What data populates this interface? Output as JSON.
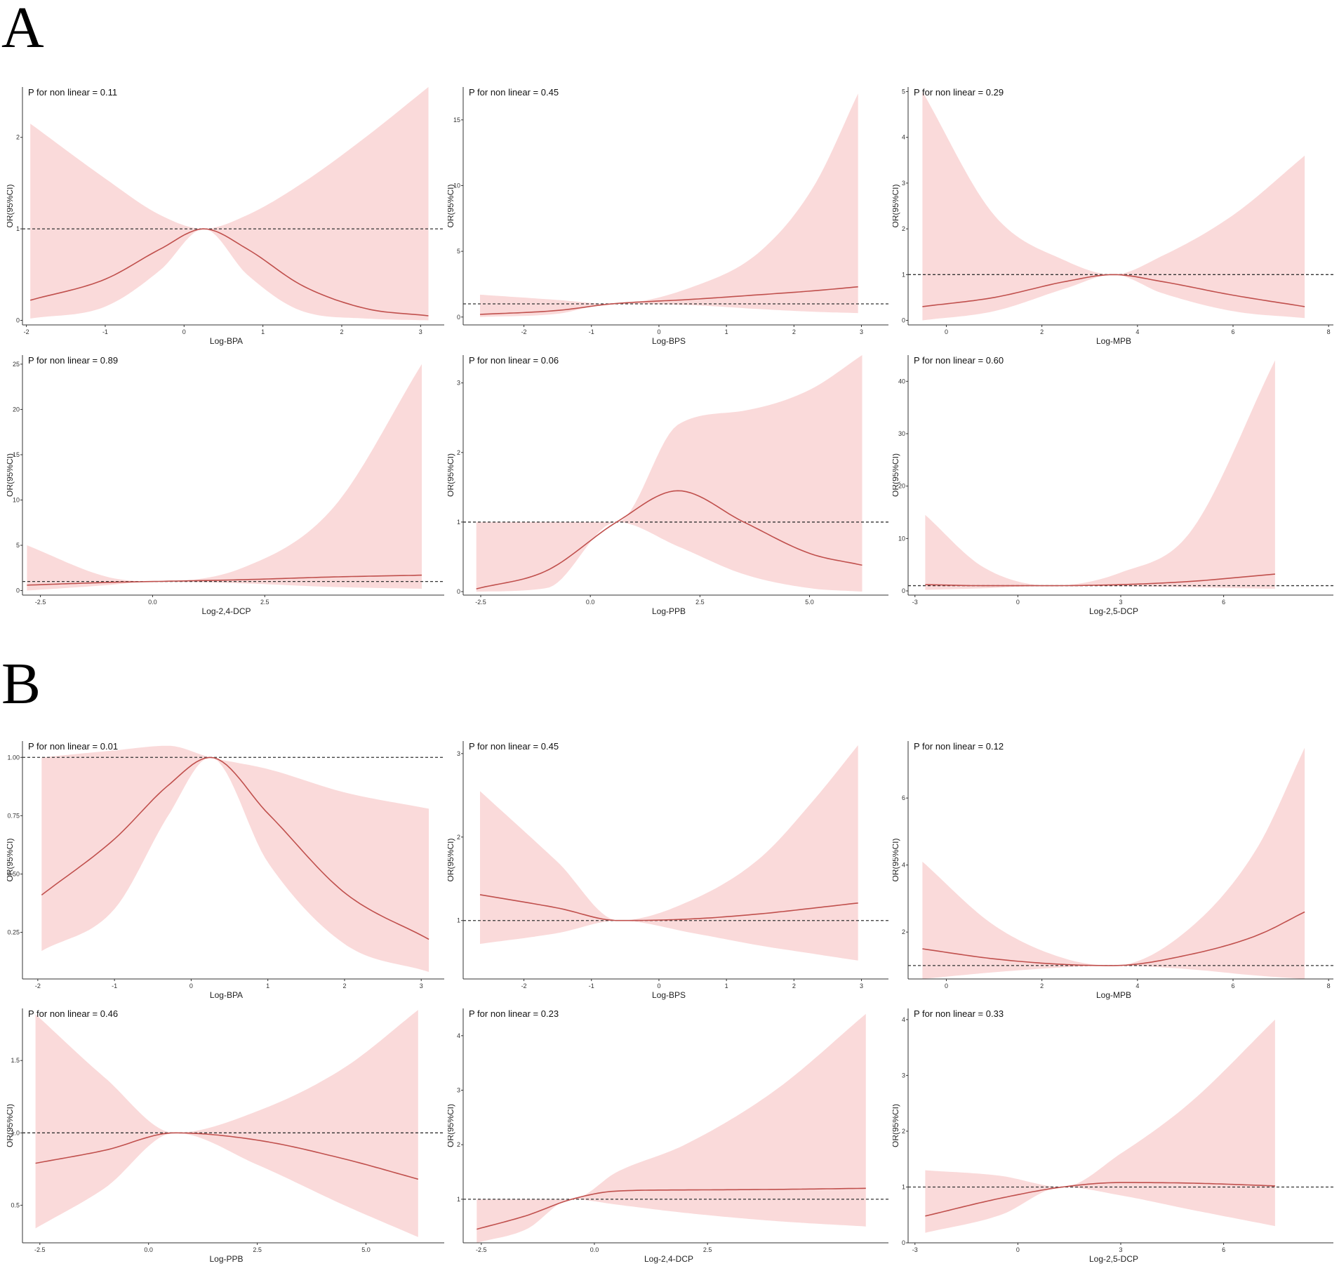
{
  "section_labels": {
    "a": "A",
    "b": "B"
  },
  "style": {
    "band_color": "#fadada",
    "curve_color": "#c0504d",
    "ref_color": "#333333",
    "axis_color": "#333333"
  },
  "chart_data": [
    {
      "id": "A1",
      "section": "A",
      "type": "line",
      "annotation": "P for non linear = 0.11",
      "xlabel": "Log-BPA",
      "ylabel": "OR(95%CI)",
      "xlim": [
        -2.05,
        3.3
      ],
      "ylim": [
        -0.05,
        2.55
      ],
      "xticks": [
        -2,
        -1,
        0,
        1,
        2,
        3
      ],
      "xtick_labels": [
        "-2",
        "-1",
        "0",
        "1",
        "2",
        "3"
      ],
      "yticks": [
        0,
        1,
        2
      ],
      "ytick_labels": [
        "0",
        "1",
        "2"
      ],
      "reference": 1,
      "x": [
        -1.95,
        -1.0,
        -0.3,
        0.25,
        0.8,
        1.5,
        2.3,
        3.1
      ],
      "y": [
        0.22,
        0.45,
        0.78,
        1.0,
        0.78,
        0.38,
        0.13,
        0.05
      ],
      "lower": [
        0.02,
        0.15,
        0.55,
        1.0,
        0.5,
        0.1,
        0.02,
        0.0
      ],
      "upper": [
        2.15,
        1.55,
        1.15,
        1.0,
        1.15,
        1.5,
        2.0,
        2.55
      ]
    },
    {
      "id": "A2",
      "section": "A",
      "type": "line",
      "annotation": "P for non linear = 0.45",
      "xlabel": "Log-BPS",
      "ylabel": "OR(95%CI)",
      "xlim": [
        -2.9,
        3.4
      ],
      "ylim": [
        -0.6,
        17.5
      ],
      "xticks": [
        -2,
        -1,
        0,
        1,
        2,
        3
      ],
      "xtick_labels": [
        "-2",
        "-1",
        "0",
        "1",
        "2",
        "3"
      ],
      "yticks": [
        0,
        5,
        10,
        15
      ],
      "ytick_labels": [
        "0",
        "5",
        "10",
        "15"
      ],
      "reference": 1,
      "x": [
        -2.65,
        -1.5,
        -0.7,
        0.5,
        1.5,
        2.3,
        2.95
      ],
      "y": [
        0.2,
        0.5,
        1.0,
        1.35,
        1.7,
        2.0,
        2.3
      ],
      "lower": [
        0.0,
        0.25,
        1.0,
        0.9,
        0.6,
        0.4,
        0.3
      ],
      "upper": [
        1.7,
        1.3,
        1.0,
        2.3,
        5.0,
        10.0,
        17.0
      ]
    },
    {
      "id": "A3",
      "section": "A",
      "type": "line",
      "annotation": "P for non linear = 0.29",
      "xlabel": "Log-MPB",
      "ylabel": "OR(95%CI)",
      "xlim": [
        -0.8,
        8.1
      ],
      "ylim": [
        -0.1,
        5.1
      ],
      "xticks": [
        0,
        2,
        4,
        6,
        8
      ],
      "xtick_labels": [
        "0",
        "2",
        "4",
        "6",
        "8"
      ],
      "yticks": [
        0,
        1,
        2,
        3,
        4,
        5
      ],
      "ytick_labels": [
        "0",
        "1",
        "2",
        "3",
        "4",
        "5"
      ],
      "reference": 1,
      "x": [
        -0.5,
        1.0,
        2.5,
        3.5,
        4.5,
        6.0,
        7.5
      ],
      "y": [
        0.3,
        0.5,
        0.85,
        1.0,
        0.85,
        0.55,
        0.3
      ],
      "lower": [
        0.0,
        0.2,
        0.7,
        1.0,
        0.6,
        0.2,
        0.05
      ],
      "upper": [
        5.0,
        2.3,
        1.3,
        1.0,
        1.4,
        2.3,
        3.6
      ]
    },
    {
      "id": "A4",
      "section": "A",
      "type": "line",
      "annotation": "P for non linear = 0.89",
      "xlabel": "Log-2,4-DCP",
      "ylabel": "OR(95%CI)",
      "xlim": [
        -2.9,
        6.5
      ],
      "ylim": [
        -0.5,
        26
      ],
      "xticks": [
        -2.5,
        0.0,
        2.5
      ],
      "xtick_labels": [
        "-2.5",
        "0.0",
        "2.5"
      ],
      "yticks": [
        0,
        5,
        10,
        15,
        20,
        25
      ],
      "ytick_labels": [
        "0",
        "5",
        "10",
        "15",
        "20",
        "25"
      ],
      "reference": 1,
      "x": [
        -2.8,
        -1.0,
        0.0,
        2.0,
        4.0,
        6.0
      ],
      "y": [
        0.6,
        0.9,
        1.0,
        1.2,
        1.5,
        1.7
      ],
      "lower": [
        0.0,
        0.6,
        1.0,
        0.8,
        0.4,
        0.2
      ],
      "upper": [
        5.0,
        1.5,
        1.0,
        2.5,
        9.0,
        25.0
      ]
    },
    {
      "id": "A5",
      "section": "A",
      "type": "line",
      "annotation": "P for non linear = 0.06",
      "xlabel": "Log-PPB",
      "ylabel": "OR(95%CI)",
      "xlim": [
        -2.9,
        6.8
      ],
      "ylim": [
        -0.05,
        3.4
      ],
      "xticks": [
        -2.5,
        0.0,
        2.5,
        5.0
      ],
      "xtick_labels": [
        "-2.5",
        "0.0",
        "2.5",
        "5.0"
      ],
      "yticks": [
        0,
        1,
        2,
        3
      ],
      "ytick_labels": [
        "0",
        "1",
        "2",
        "3"
      ],
      "reference": 1,
      "x": [
        -2.6,
        -1.0,
        0.6,
        2.0,
        3.5,
        5.0,
        6.2
      ],
      "y": [
        0.04,
        0.3,
        1.0,
        1.45,
        1.0,
        0.55,
        0.38
      ],
      "lower": [
        0.0,
        0.05,
        1.0,
        0.65,
        0.25,
        0.05,
        0.0
      ],
      "upper": [
        1.0,
        1.0,
        1.0,
        2.4,
        2.6,
        2.9,
        3.4
      ]
    },
    {
      "id": "A6",
      "section": "A",
      "type": "line",
      "annotation": "P for non linear = 0.60",
      "xlabel": "Log-2,5-DCP",
      "ylabel": "OR(95%CI)",
      "xlim": [
        -3.2,
        9.2
      ],
      "ylim": [
        -0.8,
        45
      ],
      "xticks": [
        -3,
        0,
        3,
        6
      ],
      "xtick_labels": [
        "-3",
        "0",
        "3",
        "6"
      ],
      "yticks": [
        0,
        10,
        20,
        30,
        40
      ],
      "ytick_labels": [
        "0",
        "10",
        "20",
        "30",
        "40"
      ],
      "reference": 1,
      "x": [
        -2.7,
        -1.0,
        1.0,
        3.0,
        5.0,
        7.5
      ],
      "y": [
        1.2,
        1.0,
        1.0,
        1.2,
        1.8,
        3.2
      ],
      "lower": [
        0.2,
        0.5,
        1.0,
        0.9,
        0.7,
        0.4
      ],
      "upper": [
        14.5,
        4.5,
        1.0,
        3.5,
        11.0,
        44.0
      ]
    },
    {
      "id": "B1",
      "section": "B",
      "type": "line",
      "annotation": "P for non linear = 0.01",
      "xlabel": "Log-BPA",
      "ylabel": "OR(95%CI)",
      "xlim": [
        -2.2,
        3.3
      ],
      "ylim": [
        0.05,
        1.07
      ],
      "xticks": [
        -2,
        -1,
        0,
        1,
        2,
        3
      ],
      "xtick_labels": [
        "-2",
        "-1",
        "0",
        "1",
        "2",
        "3"
      ],
      "yticks": [
        0.25,
        0.5,
        0.75,
        1.0
      ],
      "ytick_labels": [
        "0.25",
        "0.50",
        "0.75",
        "1.00"
      ],
      "reference": 1.0,
      "x": [
        -1.95,
        -1.0,
        -0.3,
        0.25,
        1.0,
        2.0,
        3.1
      ],
      "y": [
        0.41,
        0.65,
        0.88,
        1.0,
        0.76,
        0.42,
        0.22
      ],
      "lower": [
        0.17,
        0.35,
        0.75,
        1.0,
        0.55,
        0.2,
        0.08
      ],
      "upper": [
        1.0,
        1.03,
        1.05,
        1.0,
        0.95,
        0.85,
        0.78
      ]
    },
    {
      "id": "B2",
      "section": "B",
      "type": "line",
      "annotation": "P for non linear = 0.45",
      "xlabel": "Log-BPS",
      "ylabel": "OR(95%CI)",
      "xlim": [
        -2.9,
        3.4
      ],
      "ylim": [
        0.3,
        3.15
      ],
      "xticks": [
        -2,
        -1,
        0,
        1,
        2,
        3
      ],
      "xtick_labels": [
        "-2",
        "-1",
        "0",
        "1",
        "2",
        "3"
      ],
      "yticks": [
        1,
        2,
        3
      ],
      "ytick_labels": [
        "1",
        "2",
        "3"
      ],
      "reference": 1,
      "x": [
        -2.65,
        -1.5,
        -0.6,
        0.5,
        1.5,
        2.3,
        2.95
      ],
      "y": [
        1.31,
        1.15,
        1.0,
        1.02,
        1.08,
        1.15,
        1.21
      ],
      "lower": [
        0.72,
        0.85,
        1.0,
        0.85,
        0.7,
        0.6,
        0.52
      ],
      "upper": [
        2.55,
        1.7,
        1.0,
        1.25,
        1.75,
        2.45,
        3.1
      ]
    },
    {
      "id": "B3",
      "section": "B",
      "type": "line",
      "annotation": "P for non linear = 0.12",
      "xlabel": "Log-MPB",
      "ylabel": "OR(95%CI)",
      "xlim": [
        -0.8,
        8.1
      ],
      "ylim": [
        0.6,
        7.7
      ],
      "xticks": [
        0,
        2,
        4,
        6,
        8
      ],
      "xtick_labels": [
        "0",
        "2",
        "4",
        "6",
        "8"
      ],
      "yticks": [
        2,
        4,
        6
      ],
      "ytick_labels": [
        "2",
        "4",
        "6"
      ],
      "reference": 1,
      "x": [
        -0.5,
        1.0,
        2.5,
        3.5,
        5.0,
        6.5,
        7.5
      ],
      "y": [
        1.5,
        1.2,
        1.03,
        1.0,
        1.3,
        1.9,
        2.6
      ],
      "lower": [
        0.6,
        0.8,
        0.95,
        1.0,
        0.9,
        0.7,
        0.6
      ],
      "upper": [
        4.1,
        2.2,
        1.2,
        1.0,
        2.0,
        4.5,
        7.5
      ]
    },
    {
      "id": "B4",
      "section": "B",
      "type": "line",
      "annotation": "P for non linear = 0.46",
      "xlabel": "Log-PPB",
      "ylabel": "OR(95%CI)",
      "xlim": [
        -2.9,
        6.8
      ],
      "ylim": [
        0.24,
        1.86
      ],
      "xticks": [
        -2.5,
        0.0,
        2.5,
        5.0
      ],
      "xtick_labels": [
        "-2.5",
        "0.0",
        "2.5",
        "5.0"
      ],
      "yticks": [
        0.5,
        1.0,
        1.5
      ],
      "ytick_labels": [
        "0.5",
        "1.0",
        "1.5"
      ],
      "reference": 1.0,
      "x": [
        -2.6,
        -1.0,
        0.6,
        2.5,
        4.5,
        6.2
      ],
      "y": [
        0.79,
        0.88,
        1.0,
        0.95,
        0.82,
        0.68
      ],
      "lower": [
        0.34,
        0.62,
        1.0,
        0.78,
        0.5,
        0.28
      ],
      "upper": [
        1.82,
        1.38,
        1.0,
        1.15,
        1.45,
        1.85
      ]
    },
    {
      "id": "B5",
      "section": "B",
      "type": "line",
      "annotation": "P for non linear = 0.23",
      "xlabel": "Log-2,4-DCP",
      "ylabel": "OR(95%CI)",
      "xlim": [
        -2.9,
        6.5
      ],
      "ylim": [
        0.2,
        4.5
      ],
      "xticks": [
        -2.5,
        0.0,
        2.5
      ],
      "xtick_labels": [
        "-2.5",
        "0.0",
        "2.5"
      ],
      "yticks": [
        1,
        2,
        3,
        4
      ],
      "ytick_labels": [
        "1",
        "2",
        "3",
        "4"
      ],
      "reference": 1,
      "x": [
        -2.6,
        -1.5,
        -0.5,
        0.5,
        2.0,
        4.0,
        6.0
      ],
      "y": [
        0.45,
        0.7,
        1.0,
        1.15,
        1.17,
        1.18,
        1.2
      ],
      "lower": [
        0.2,
        0.45,
        1.0,
        0.9,
        0.75,
        0.6,
        0.5
      ],
      "upper": [
        1.0,
        1.0,
        1.0,
        1.5,
        2.0,
        3.0,
        4.4
      ]
    },
    {
      "id": "B6",
      "section": "B",
      "type": "line",
      "annotation": "P for non linear = 0.33",
      "xlabel": "Log-2,5-DCP",
      "ylabel": "OR(95%CI)",
      "xlim": [
        -3.2,
        9.2
      ],
      "ylim": [
        0.0,
        4.2
      ],
      "xticks": [
        -3,
        0,
        3,
        6
      ],
      "xtick_labels": [
        "-3",
        "0",
        "3",
        "6"
      ],
      "yticks": [
        0,
        1,
        2,
        3,
        4
      ],
      "ytick_labels": [
        "0",
        "1",
        "2",
        "3",
        "4"
      ],
      "reference": 1,
      "x": [
        -2.7,
        -0.5,
        1.3,
        3.0,
        5.0,
        7.5
      ],
      "y": [
        0.48,
        0.8,
        1.0,
        1.08,
        1.07,
        1.02
      ],
      "lower": [
        0.18,
        0.5,
        1.0,
        0.85,
        0.6,
        0.3
      ],
      "upper": [
        1.3,
        1.2,
        1.0,
        1.6,
        2.5,
        4.0
      ]
    }
  ]
}
